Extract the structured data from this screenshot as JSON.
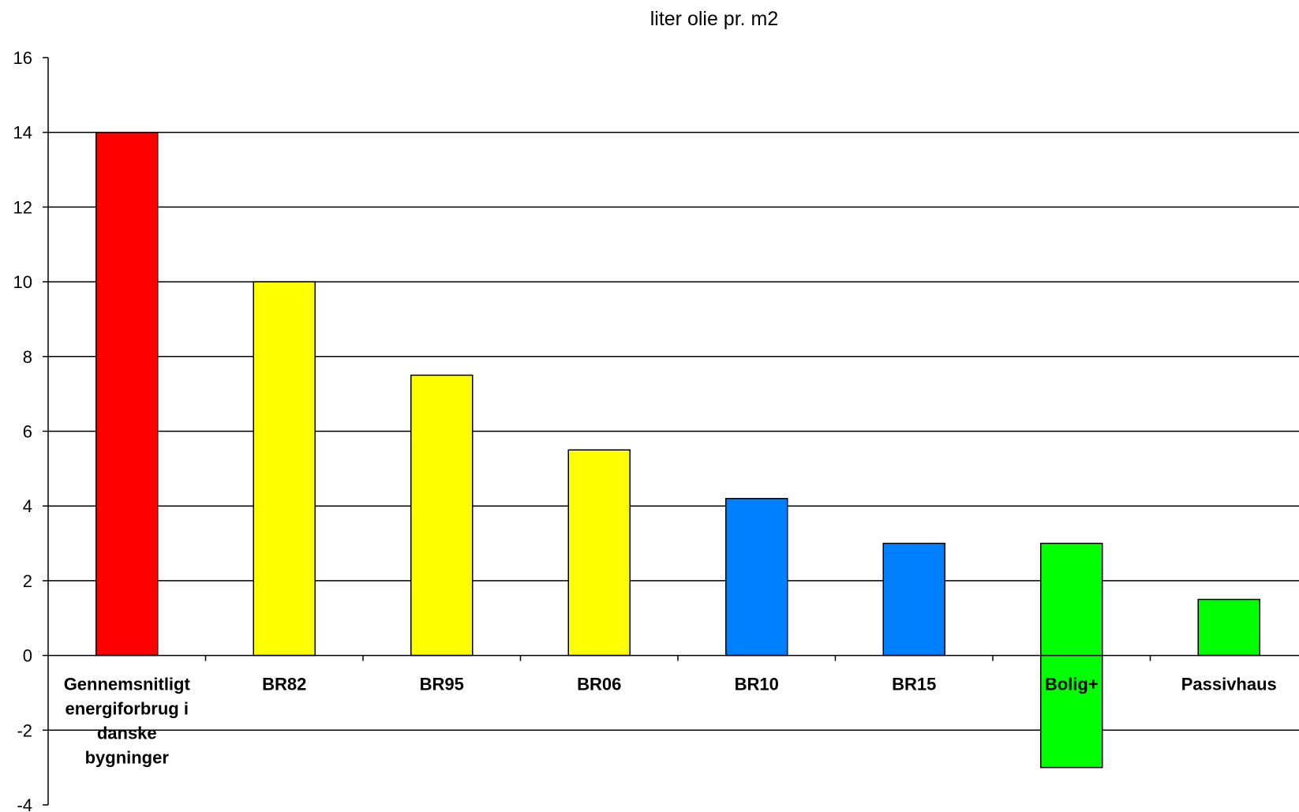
{
  "chart_data": {
    "type": "bar",
    "title": "liter olie pr. m2",
    "xlabel": "",
    "ylabel": "",
    "ylim": [
      -4,
      16
    ],
    "yticks": [
      16,
      14,
      12,
      10,
      8,
      6,
      4,
      2,
      0,
      -2,
      -4
    ],
    "grid": true,
    "categories": [
      "Gennemsnitligt energiforbrug i danske bygninger",
      "BR82",
      "BR95",
      "BR06",
      "BR10",
      "BR15",
      "Bolig+",
      "Passivhaus"
    ],
    "category_label_lines": [
      [
        "Gennemsnitligt",
        "energiforbrug i",
        "danske",
        "bygninger"
      ],
      [
        "BR82"
      ],
      [
        "BR95"
      ],
      [
        "BR06"
      ],
      [
        "BR10"
      ],
      [
        "BR15"
      ],
      [
        "Bolig+"
      ],
      [
        "Passivhaus"
      ]
    ],
    "bars": [
      {
        "low": 0,
        "high": 14
      },
      {
        "low": 0,
        "high": 10
      },
      {
        "low": 0,
        "high": 7.5
      },
      {
        "low": 0,
        "high": 5.5
      },
      {
        "low": 0,
        "high": 4.2
      },
      {
        "low": 0,
        "high": 3
      },
      {
        "low": -3,
        "high": 3
      },
      {
        "low": 0,
        "high": 1.5
      }
    ],
    "colors": [
      "#ff0000",
      "#ffff00",
      "#ffff00",
      "#ffff00",
      "#0080ff",
      "#0080ff",
      "#00ff00",
      "#00ff00"
    ]
  }
}
